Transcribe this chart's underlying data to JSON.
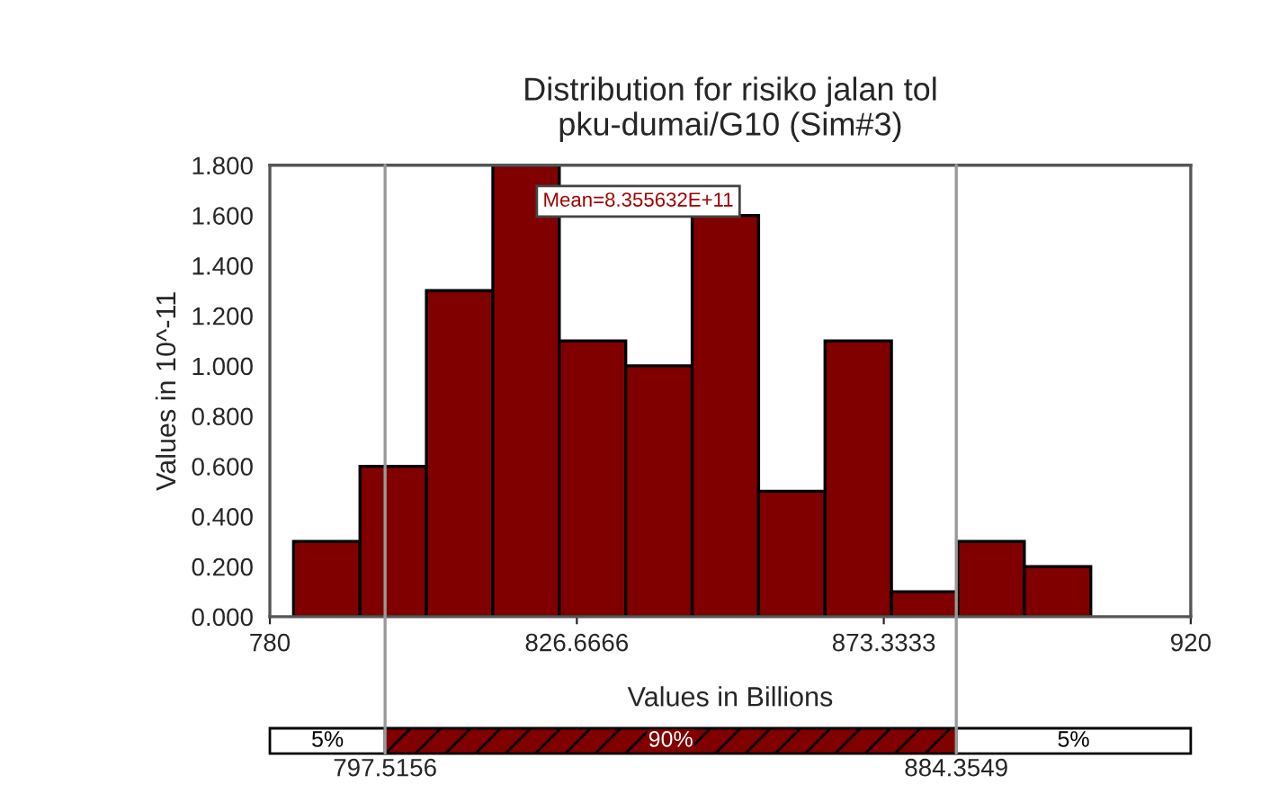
{
  "chart_data": {
    "type": "histogram",
    "title": "Distribution for risiko jalan tol\npku-dumai/G10 (Sim#3)",
    "xlabel": "Values in Billions",
    "ylabel": "Values in 10^-11",
    "bins": [
      783.6,
      793.7,
      803.8,
      813.9,
      824.0,
      834.1,
      844.2,
      854.3,
      864.4,
      874.5,
      884.6,
      894.7,
      904.8
    ],
    "values": [
      0.3,
      0.6,
      1.3,
      1.8,
      1.1,
      1.0,
      1.6,
      0.5,
      1.1,
      0.1,
      0.3,
      0.2
    ],
    "color": "#800000",
    "xlim": [
      780,
      920
    ],
    "xticks": [
      780,
      {
        "value": 826.6666,
        "label": "826.6666"
      },
      {
        "value": 873.3333,
        "label": "873.3333"
      },
      920
    ],
    "ylim": [
      0,
      1.8
    ],
    "yticks": [
      {
        "value": 0,
        "label": "0.000"
      },
      {
        "value": 0.2,
        "label": "0.200"
      },
      {
        "value": 0.4,
        "label": "0.400"
      },
      {
        "value": 0.6,
        "label": "0.600"
      },
      {
        "value": 0.8,
        "label": "0.800"
      },
      {
        "value": 1.0,
        "label": "1.000"
      },
      {
        "value": 1.2,
        "label": "1.200"
      },
      {
        "value": 1.4,
        "label": "1.400"
      },
      {
        "value": 1.6,
        "label": "1.600"
      },
      {
        "value": 1.8,
        "label": "1.800"
      }
    ],
    "ref_lines": [
      {
        "axis": "x",
        "value": 797.5156,
        "label": "797.5156",
        "color": "#999999"
      },
      {
        "axis": "x",
        "value": 884.3549,
        "label": "884.3549",
        "color": "#999999"
      }
    ],
    "annotations": [
      "Mean=8.355632E+11",
      "5%",
      "90%",
      "5%"
    ],
    "grid": false
  }
}
